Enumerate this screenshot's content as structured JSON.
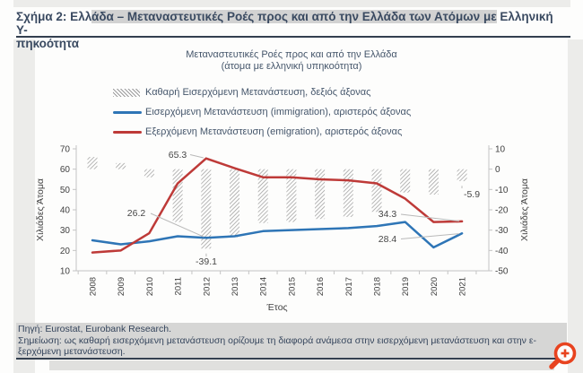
{
  "header": {
    "line1_pre": "Σχήμα 2: Ελλ",
    "line1_hl": "άδα – Μεταναστευτικές Ροές προς και από την Ελλάδα των Ατόμων με",
    "line1_post": " Ελληνική Υ-",
    "line2": "πηκοότητα"
  },
  "chart": {
    "title_line1": "Μεταναστευτικές Ροές προς και από την Ελλάδα",
    "title_line2": "(άτομα με ελληνική υπηκοότητα)",
    "legend": [
      {
        "key": "net",
        "type": "hatch",
        "label": "Καθαρή Εισερχόμενη Μετανάστευση, δεξιός άξονας"
      },
      {
        "key": "immigration",
        "type": "line",
        "color": "#2E75B6",
        "label": "Εισερχόμενη Μετανάστευση (immigration), αριστερός άξονας"
      },
      {
        "key": "emigration",
        "type": "line",
        "color": "#BE3A38",
        "label": "Εξερχόμενη Μετανάστευση (emigration), αριστερός άξονας"
      }
    ]
  },
  "chart_data": {
    "type": "combo-bar-line",
    "x": [
      2008,
      2009,
      2010,
      2011,
      2012,
      2013,
      2014,
      2015,
      2016,
      2017,
      2018,
      2019,
      2020,
      2021
    ],
    "series": [
      {
        "key": "net",
        "name": "Καθαρή Εισερχόμενη Μετανάστευση (net immigration)",
        "type": "bar",
        "axis": "right",
        "values": [
          6,
          3,
          -4,
          -26,
          -39.1,
          -33.5,
          -26.5,
          -26,
          -24.5,
          -23.5,
          -21,
          -11.5,
          -12.5,
          -5.9
        ]
      },
      {
        "key": "immigration",
        "name": "Εισερχόμενη Μετανάστευση (immigration)",
        "type": "line",
        "axis": "left",
        "color": "#2E75B6",
        "values": [
          25,
          23,
          24.5,
          27,
          26.2,
          27,
          29.5,
          30,
          30.5,
          31,
          32,
          34,
          21.5,
          28.4
        ]
      },
      {
        "key": "emigration",
        "name": "Εξερχόμενη Μετανάστευση (emigration)",
        "type": "line",
        "axis": "left",
        "color": "#BE3A38",
        "values": [
          19,
          20,
          28.5,
          53,
          65.3,
          60.5,
          56,
          56,
          55,
          54.5,
          53,
          45.5,
          34,
          34.3
        ]
      }
    ],
    "left_axis": {
      "label": "Χιλιάδες Άτομα",
      "ticks": [
        70,
        60,
        50,
        40,
        30,
        20,
        10
      ],
      "range": [
        10,
        70
      ]
    },
    "right_axis": {
      "label": "Χιλιάδες Άτομα",
      "ticks": [
        10,
        0,
        -10,
        -20,
        -30,
        -40,
        -50
      ],
      "range": [
        -50,
        10
      ]
    },
    "x_axis": {
      "label": "Έτος"
    },
    "annotations": [
      {
        "text": "65.3",
        "series": "emigration",
        "year": 2012
      },
      {
        "text": "26.2",
        "series": "immigration",
        "year": 2012
      },
      {
        "text": "-39.1",
        "series": "net",
        "year": 2012
      },
      {
        "text": "34.3",
        "series": "emigration",
        "year": 2021
      },
      {
        "text": "28.4",
        "series": "immigration",
        "year": 2021
      },
      {
        "text": "-5.9",
        "series": "net",
        "year": 2021
      }
    ],
    "grid": false,
    "legend_position": "top"
  },
  "footer": {
    "line1": "Πηγή: Eurostat, Eurobank Research.",
    "line2": "Σημείωση: ως καθαρή εισερχόμενη μετανάστευση ορίζουμε τη διαφορά ανάμεσα στην εισερχόμενη μετανάστευση και στην ε-",
    "line3": "ξερχόμενη μετανάστευση."
  },
  "icons": {
    "zoom_in": "magnifier-plus"
  },
  "colors": {
    "immigration_blue": "#2E75B6",
    "emigration_red": "#BE3A38",
    "hatch_gray": "#9B9B9B",
    "highlight_gray": "#D2D2D2",
    "rule_navy": "#333F4F",
    "zoom_icon_orange": "#E8431F",
    "axis_gray": "#C4C4C4",
    "annotation_text": "#474747"
  }
}
